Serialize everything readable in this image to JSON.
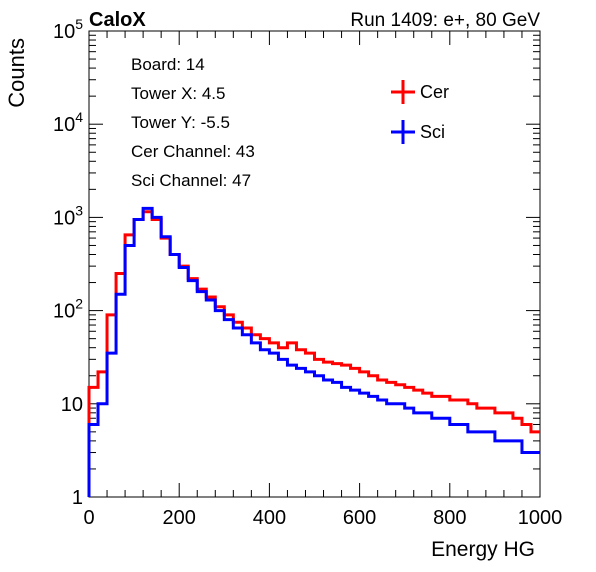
{
  "header": {
    "left": "CaloX",
    "right": "Run 1409: e+, 80 GeV"
  },
  "info_box": {
    "lines": [
      "Board: 14",
      "Tower X: 4.5",
      "Tower Y: -5.5",
      "Cer Channel: 43",
      "Sci Channel: 47"
    ]
  },
  "colors": {
    "cer": "#ff0000",
    "sci": "#0000ff",
    "axis": "#000000"
  },
  "chart_data": {
    "type": "line",
    "xlabel": "Energy HG",
    "ylabel": "Counts",
    "xlim": [
      0,
      1000
    ],
    "ylim": [
      1,
      100000
    ],
    "yscale": "log",
    "x_ticks": [
      "0",
      "200",
      "400",
      "600",
      "800",
      "1000"
    ],
    "y_ticks": [
      "1",
      "10",
      "10^2",
      "10^3",
      "10^4",
      "10^5"
    ],
    "legend": {
      "placement": "top-right",
      "entries": [
        "Cer",
        "Sci"
      ]
    },
    "x": [
      10,
      30,
      50,
      70,
      90,
      110,
      130,
      150,
      170,
      190,
      210,
      230,
      250,
      270,
      290,
      310,
      330,
      350,
      370,
      390,
      410,
      430,
      450,
      470,
      490,
      510,
      530,
      550,
      570,
      590,
      610,
      630,
      650,
      670,
      690,
      710,
      730,
      750,
      770,
      790,
      810,
      830,
      850,
      870,
      890,
      910,
      930,
      950,
      970,
      990
    ],
    "series": [
      {
        "name": "Cer",
        "color": "#ff0000",
        "values": [
          15,
          22,
          90,
          250,
          650,
          950,
          1150,
          950,
          600,
          400,
          300,
          220,
          170,
          140,
          110,
          90,
          75,
          65,
          55,
          50,
          45,
          40,
          45,
          38,
          35,
          30,
          28,
          27,
          26,
          24,
          22,
          20,
          18,
          17,
          16,
          15,
          14,
          13,
          12,
          12,
          11,
          11,
          10,
          9,
          9,
          8,
          8,
          7,
          6,
          5
        ]
      },
      {
        "name": "Sci",
        "color": "#0000ff",
        "values": [
          6,
          10,
          35,
          150,
          500,
          950,
          1250,
          1000,
          620,
          400,
          290,
          210,
          160,
          130,
          100,
          80,
          65,
          55,
          45,
          38,
          35,
          30,
          26,
          24,
          22,
          20,
          18,
          17,
          15,
          14,
          13,
          12,
          11,
          10,
          10,
          9,
          8,
          8,
          7,
          7,
          6,
          6,
          5,
          5,
          5,
          4,
          4,
          4,
          3,
          3
        ]
      }
    ]
  }
}
